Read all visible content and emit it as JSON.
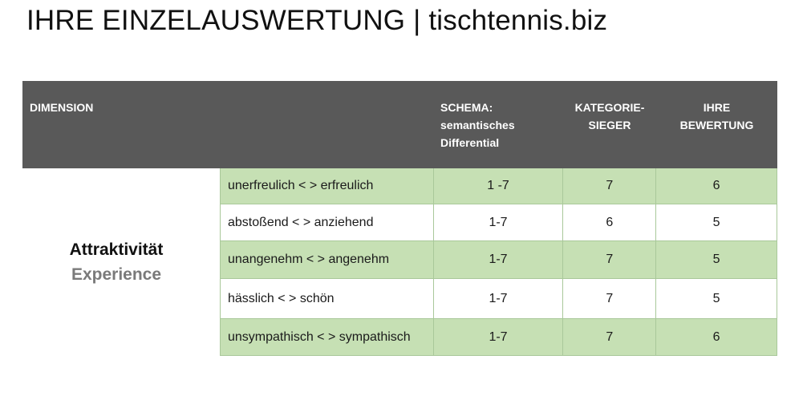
{
  "page": {
    "title": "IHRE EINZELAUSWERTUNG | tischtennis.biz"
  },
  "table": {
    "headers": {
      "dimension": "DIMENSION",
      "schema": [
        "SCHEMA:",
        "semantisches",
        "Differential"
      ],
      "kategoriesieger": [
        "KATEGORIE-",
        "SIEGER"
      ],
      "bewertung": [
        "IHRE",
        "BEWERTUNG"
      ]
    },
    "dimension": {
      "name": "Attraktivität",
      "subname": "Experience"
    },
    "rows": [
      {
        "pair": "unerfreulich < > erfreulich",
        "schema": "1 -7",
        "kategoriesieger": "7",
        "bewertung": "6"
      },
      {
        "pair": "abstoßend < > anziehend",
        "schema": "1-7",
        "kategoriesieger": "6",
        "bewertung": "5"
      },
      {
        "pair": "unangenehm < > angenehm",
        "schema": "1-7",
        "kategoriesieger": "7",
        "bewertung": "5"
      },
      {
        "pair": "hässlich < > schön",
        "schema": "1-7",
        "kategoriesieger": "7",
        "bewertung": "5"
      },
      {
        "pair": "unsympathisch < > sympathisch",
        "schema": "1-7",
        "kategoriesieger": "7",
        "bewertung": "6"
      }
    ]
  },
  "colors": {
    "header_bg": "#595959",
    "row_green": "#c6e0b4",
    "row_white": "#ffffff",
    "subtitle_gray": "#7a7a7a"
  }
}
